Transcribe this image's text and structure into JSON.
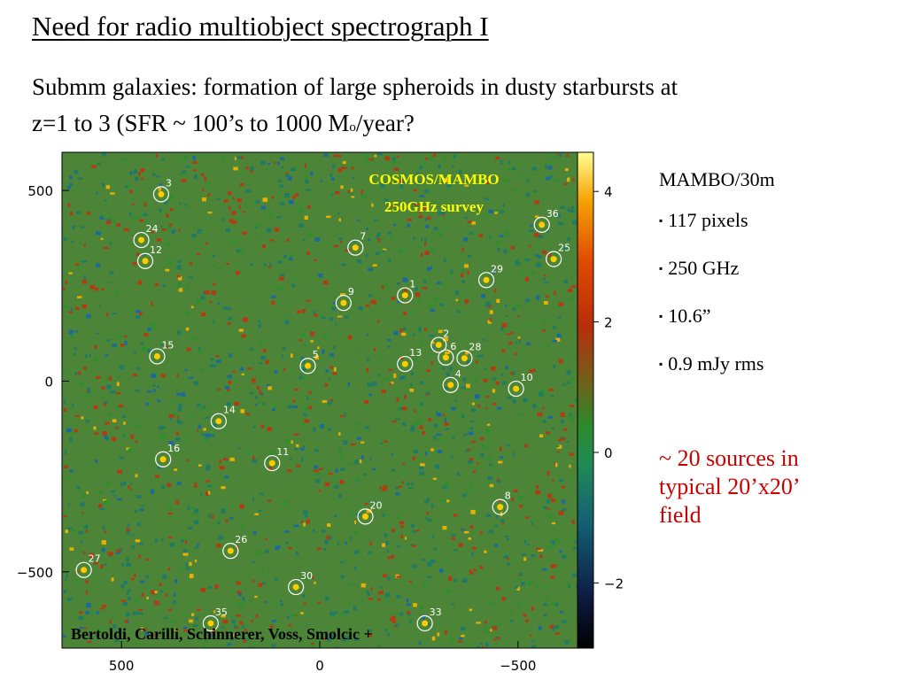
{
  "slide": {
    "title": "Need for radio multiobject spectrograph I",
    "subtitle_line1": "Submm galaxies: formation of large spheroids in dusty starbursts at",
    "subtitle_line2_a": "z=1 to 3  (SFR ~ 100’s to 1000 M",
    "subtitle_line2_sub": "o",
    "subtitle_line2_b": "/year?"
  },
  "figure": {
    "map_title_line1": "COSMOS/MAMBO",
    "map_title_line2": "250GHz survey",
    "credit": "Bertoldi, Carilli, Schinnerer, Voss, Smolcic +",
    "x_ticks": [
      {
        "value": 500,
        "label": "500"
      },
      {
        "value": 0,
        "label": "0"
      },
      {
        "value": -500,
        "label": "−500"
      }
    ],
    "y_ticks": [
      {
        "value": 500,
        "label": "500"
      },
      {
        "value": 0,
        "label": "0"
      },
      {
        "value": -500,
        "label": "−500"
      }
    ],
    "x_range": [
      650,
      -650
    ],
    "y_range": [
      -700,
      600
    ],
    "colorbar_ticks": [
      {
        "value": 4,
        "label": "4"
      },
      {
        "value": 2,
        "label": "2"
      },
      {
        "value": 0,
        "label": "0"
      },
      {
        "value": -2,
        "label": "−2"
      }
    ],
    "colorbar_range": [
      -3,
      4.6
    ],
    "sources": [
      {
        "id": "3",
        "x": 400,
        "y": 490
      },
      {
        "id": "24",
        "x": 450,
        "y": 370
      },
      {
        "id": "12",
        "x": 440,
        "y": 315
      },
      {
        "id": "7",
        "x": -90,
        "y": 350
      },
      {
        "id": "36",
        "x": -560,
        "y": 410
      },
      {
        "id": "25",
        "x": -590,
        "y": 320
      },
      {
        "id": "29",
        "x": -420,
        "y": 265
      },
      {
        "id": "1",
        "x": -215,
        "y": 225
      },
      {
        "id": "9",
        "x": -60,
        "y": 205
      },
      {
        "id": "2",
        "x": -300,
        "y": 95
      },
      {
        "id": "6",
        "x": -318,
        "y": 62
      },
      {
        "id": "28",
        "x": -365,
        "y": 60
      },
      {
        "id": "13",
        "x": -215,
        "y": 45
      },
      {
        "id": "5",
        "x": 30,
        "y": 40
      },
      {
        "id": "15",
        "x": 410,
        "y": 65
      },
      {
        "id": "4",
        "x": -330,
        "y": -10
      },
      {
        "id": "10",
        "x": -495,
        "y": -20
      },
      {
        "id": "14",
        "x": 255,
        "y": -105
      },
      {
        "id": "16",
        "x": 395,
        "y": -205
      },
      {
        "id": "11",
        "x": 120,
        "y": -215
      },
      {
        "id": "8",
        "x": -455,
        "y": -330
      },
      {
        "id": "20",
        "x": -115,
        "y": -355
      },
      {
        "id": "26",
        "x": 225,
        "y": -445
      },
      {
        "id": "27",
        "x": 595,
        "y": -495
      },
      {
        "id": "30",
        "x": 60,
        "y": -540
      },
      {
        "id": "35",
        "x": 275,
        "y": -635
      },
      {
        "id": "33",
        "x": -265,
        "y": -635
      }
    ]
  },
  "sidebar": {
    "instrument": "MAMBO/30m",
    "bullets": [
      "117 pixels",
      "250 GHz",
      "10.6”",
      "0.9 mJy rms"
    ],
    "bullet_marker": "▪",
    "note_line1": "~ 20 sources in",
    "note_line2": "typical 20’x20’",
    "note_line3": "field",
    "note_color": "#cc0000"
  }
}
